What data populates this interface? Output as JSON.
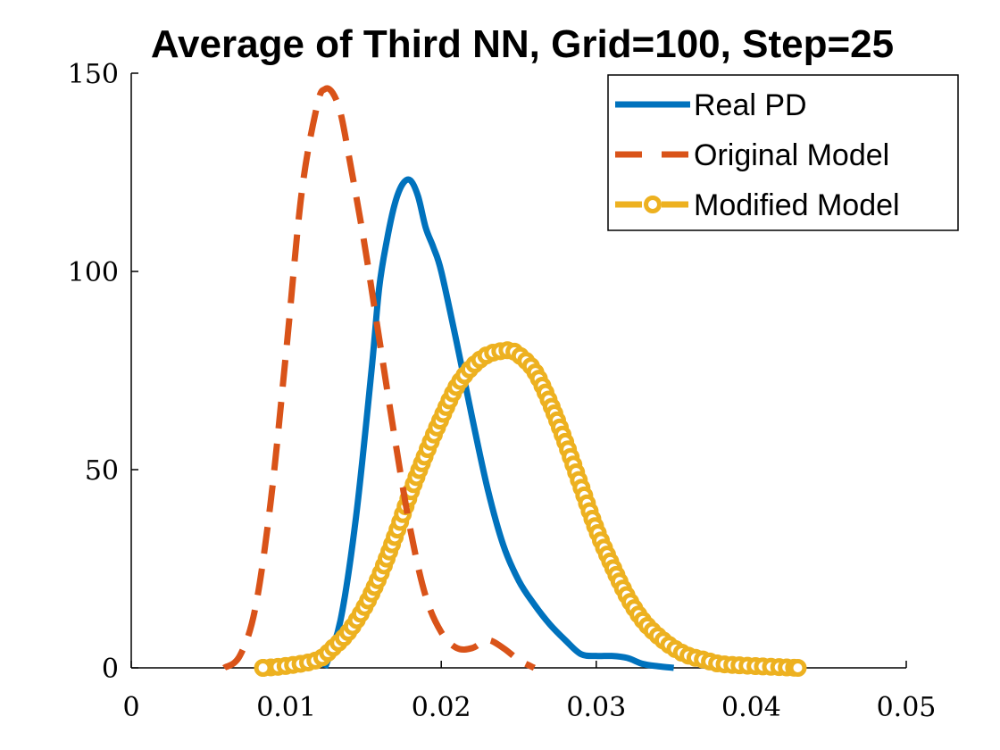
{
  "chart_data": {
    "type": "line",
    "title": "Average of Third NN, Grid=100, Step=25",
    "xlabel": "",
    "ylabel": "",
    "xlim": [
      0,
      0.05
    ],
    "ylim": [
      0,
      150
    ],
    "xticks": [
      "0",
      "0.01",
      "0.02",
      "0.03",
      "0.04",
      "0.05"
    ],
    "yticks": [
      "0",
      "50",
      "100",
      "150"
    ],
    "grid": false,
    "legend_position": "top-right",
    "series": [
      {
        "name": "Real PD",
        "color": "#0072BD",
        "style": "solid",
        "x": [
          0.0125,
          0.0135,
          0.0145,
          0.0155,
          0.016,
          0.0165,
          0.017,
          0.0175,
          0.018,
          0.0185,
          0.019,
          0.0195,
          0.02,
          0.021,
          0.022,
          0.023,
          0.024,
          0.025,
          0.026,
          0.027,
          0.028,
          0.029,
          0.03,
          0.031,
          0.032,
          0.033,
          0.034,
          0.035
        ],
        "y": [
          0,
          12,
          38,
          75,
          96,
          108,
          117,
          122,
          123,
          119,
          111,
          106,
          100,
          82,
          63,
          45,
          31,
          22,
          16,
          11,
          7,
          3.5,
          3,
          3,
          2.5,
          1,
          0.4,
          0
        ]
      },
      {
        "name": "Original Model",
        "color": "#D95319",
        "style": "dashed",
        "x": [
          0.006,
          0.007,
          0.008,
          0.009,
          0.01,
          0.011,
          0.012,
          0.0125,
          0.013,
          0.0135,
          0.014,
          0.015,
          0.016,
          0.017,
          0.018,
          0.019,
          0.02,
          0.021,
          0.022,
          0.023,
          0.024,
          0.025,
          0.026
        ],
        "y": [
          0,
          3,
          15,
          42,
          80,
          120,
          142,
          146,
          145,
          140,
          130,
          108,
          83,
          58,
          35,
          18,
          9,
          5,
          5,
          7,
          5,
          2,
          0
        ]
      },
      {
        "name": "Modified Model",
        "color": "#EDB120",
        "style": "dashed-markers",
        "x": [
          0.0085,
          0.01,
          0.012,
          0.013,
          0.014,
          0.015,
          0.016,
          0.017,
          0.018,
          0.019,
          0.02,
          0.021,
          0.022,
          0.023,
          0.024,
          0.0245,
          0.025,
          0.026,
          0.027,
          0.028,
          0.029,
          0.03,
          0.031,
          0.032,
          0.033,
          0.034,
          0.035,
          0.036,
          0.037,
          0.038,
          0.04,
          0.043
        ],
        "y": [
          0,
          0.5,
          2,
          5,
          9,
          15,
          23,
          33,
          44,
          54,
          63,
          71,
          76,
          79,
          80,
          80,
          79,
          75,
          67,
          57,
          46,
          35,
          26,
          18,
          12,
          8,
          5,
          3,
          2,
          1,
          0.5,
          0
        ]
      }
    ]
  }
}
